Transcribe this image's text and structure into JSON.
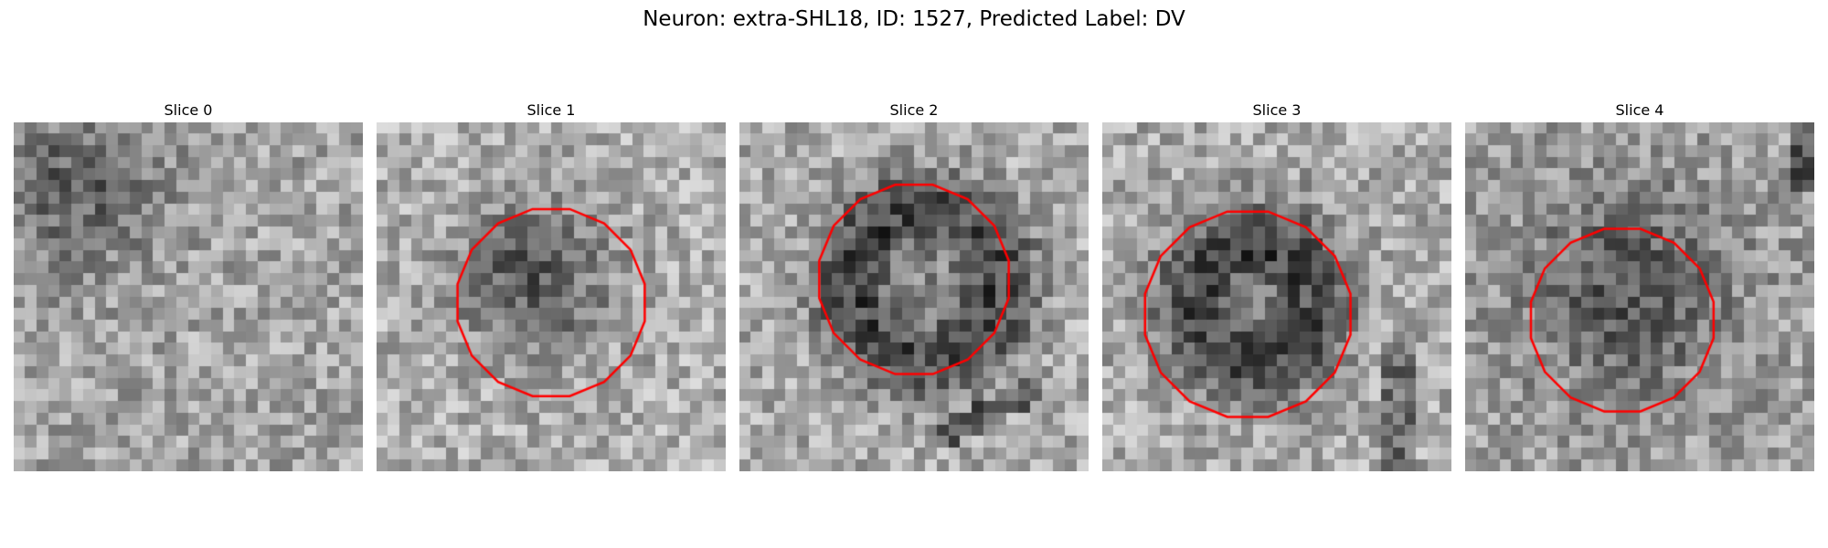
{
  "figure": {
    "title": "Neuron: extra-SHL18, ID: 1527, Predicted Label: DV"
  },
  "colors": {
    "contour": "#ff0000"
  },
  "slices": [
    {
      "title": "Slice 0",
      "has_contour": false
    },
    {
      "title": "Slice 1",
      "has_contour": true
    },
    {
      "title": "Slice 2",
      "has_contour": true
    },
    {
      "title": "Slice 3",
      "has_contour": true
    },
    {
      "title": "Slice 4",
      "has_contour": true
    }
  ]
}
